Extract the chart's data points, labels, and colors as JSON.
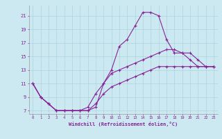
{
  "xlabel": "Windchill (Refroidissement éolien,°C)",
  "bg_color": "#cce8f0",
  "grid_color": "#aad4e0",
  "line_color": "#882299",
  "xlim": [
    -0.5,
    23.5
  ],
  "ylim": [
    6.5,
    22.5
  ],
  "xticks": [
    0,
    1,
    2,
    3,
    4,
    5,
    6,
    7,
    8,
    9,
    10,
    11,
    12,
    13,
    14,
    15,
    16,
    17,
    18,
    19,
    20,
    21,
    22,
    23
  ],
  "yticks": [
    7,
    9,
    11,
    13,
    15,
    17,
    19,
    21
  ],
  "series": [
    {
      "x": [
        0,
        1,
        2,
        3,
        4,
        5,
        6,
        7,
        8,
        9,
        10,
        11,
        12,
        13,
        14,
        15,
        16,
        17,
        18,
        19,
        20,
        21,
        22,
        23
      ],
      "y": [
        11,
        9,
        8,
        7,
        7,
        7,
        7,
        7,
        7.5,
        11,
        13,
        16.5,
        17.5,
        19.5,
        21.5,
        21.5,
        21,
        17.5,
        15.5,
        15.5,
        14.5,
        13.5,
        13.5,
        13.5
      ]
    },
    {
      "x": [
        0,
        1,
        2,
        3,
        4,
        5,
        6,
        7,
        8,
        9,
        10,
        11,
        12,
        13,
        14,
        15,
        16,
        17,
        18,
        19,
        20,
        21,
        22,
        23
      ],
      "y": [
        11,
        9,
        8,
        7,
        7,
        7,
        7,
        7.5,
        9.5,
        11,
        12.5,
        13,
        13.5,
        14,
        14.5,
        15,
        15.5,
        16,
        16,
        15.5,
        15.5,
        14.5,
        13.5,
        13.5
      ]
    },
    {
      "x": [
        0,
        1,
        2,
        3,
        4,
        5,
        6,
        7,
        8,
        9,
        10,
        11,
        12,
        13,
        14,
        15,
        16,
        17,
        18,
        19,
        20,
        21,
        22,
        23
      ],
      "y": [
        11,
        9,
        8,
        7,
        7,
        7,
        7,
        7,
        8,
        9.5,
        10.5,
        11,
        11.5,
        12,
        12.5,
        13,
        13.5,
        13.5,
        13.5,
        13.5,
        13.5,
        13.5,
        13.5,
        13.5
      ]
    }
  ]
}
